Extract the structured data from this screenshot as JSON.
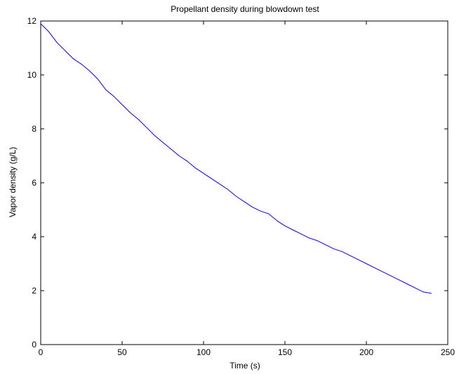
{
  "chart_data": {
    "type": "line",
    "title": "Propellant density during blowdown test",
    "xlabel": "Time (s)",
    "ylabel": "Vapor density (g/L)",
    "xlim": [
      0,
      250
    ],
    "ylim": [
      0,
      12
    ],
    "xticks": [
      0,
      50,
      100,
      150,
      200,
      250
    ],
    "yticks": [
      0,
      2,
      4,
      6,
      8,
      10,
      12
    ],
    "xtick_labels": [
      "0",
      "50",
      "100",
      "150",
      "200",
      "250"
    ],
    "ytick_labels": [
      "0",
      "2",
      "4",
      "6",
      "8",
      "10",
      "12"
    ],
    "grid": false,
    "line_color": "#0000ff",
    "series": [
      {
        "x": [
          0,
          5,
          10,
          15,
          20,
          25,
          30,
          35,
          40,
          45,
          50,
          55,
          60,
          65,
          70,
          75,
          80,
          85,
          90,
          95,
          100,
          105,
          110,
          115,
          120,
          125,
          130,
          135,
          140,
          145,
          150,
          155,
          160,
          165,
          170,
          175,
          180,
          185,
          190,
          195,
          200,
          205,
          210,
          215,
          220,
          225,
          230,
          235,
          240
        ],
        "y": [
          11.9,
          11.6,
          11.2,
          10.9,
          10.6,
          10.4,
          10.15,
          9.85,
          9.45,
          9.2,
          8.9,
          8.6,
          8.35,
          8.05,
          7.75,
          7.5,
          7.25,
          7.0,
          6.8,
          6.55,
          6.35,
          6.15,
          5.95,
          5.75,
          5.5,
          5.3,
          5.1,
          4.95,
          4.85,
          4.6,
          4.4,
          4.25,
          4.1,
          3.95,
          3.85,
          3.7,
          3.55,
          3.45,
          3.3,
          3.15,
          3.0,
          2.85,
          2.7,
          2.55,
          2.4,
          2.25,
          2.1,
          1.95,
          1.9
        ]
      }
    ]
  }
}
